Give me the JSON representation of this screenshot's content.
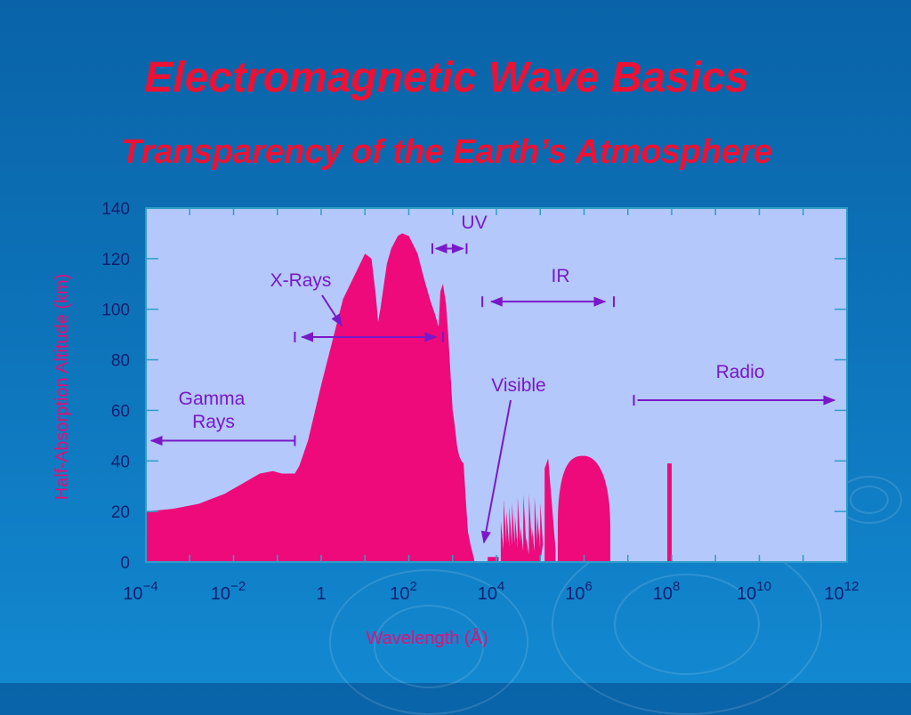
{
  "slide": {
    "title": "Electromagnetic Wave Basics",
    "subtitle": "Transparency of the Earth’s Atmosphere"
  },
  "colors": {
    "title": "#ee1133",
    "plot_background": "#b4c8fb",
    "fill": "#ee0a7a",
    "annotation": "#7a18c8",
    "axis_tick_text": "#0f1f70",
    "axis_label": "#e0107a",
    "frame": "#2e9ec8"
  },
  "chart_data": {
    "type": "area",
    "xlabel": "Wavelength (Å)",
    "ylabel": "Half-Absorption Altitude (km)",
    "xscale": "log",
    "xlim": [
      0.0001,
      1000000000000
    ],
    "ylim": [
      0,
      140
    ],
    "x_tick_labels": [
      {
        "base": "10",
        "exp": "−4"
      },
      {
        "base": "10",
        "exp": "−2"
      },
      {
        "base": "1",
        "exp": ""
      },
      {
        "base": "10",
        "exp": "2"
      },
      {
        "base": "10",
        "exp": "4"
      },
      {
        "base": "10",
        "exp": "6"
      },
      {
        "base": "10",
        "exp": "8"
      },
      {
        "base": "10",
        "exp": "10"
      },
      {
        "base": "10",
        "exp": "12"
      }
    ],
    "y_tick_labels": [
      "0",
      "20",
      "40",
      "60",
      "80",
      "100",
      "120",
      "140"
    ],
    "series": [
      {
        "log10_wavelength": [
          -4,
          -3.4,
          -2.8,
          -2.2,
          -1.8,
          -1.4,
          -1.1,
          -0.9,
          -0.6,
          -0.5,
          -0.3,
          0,
          0.5,
          1,
          1.15,
          1.25,
          1.3,
          1.35,
          1.45,
          1.5,
          1.6,
          1.75,
          1.85,
          2,
          2.2,
          2.35,
          2.5,
          2.6,
          2.68,
          2.72,
          2.78,
          2.85,
          2.9,
          3.0,
          3.05,
          3.1,
          3.15,
          3.2,
          3.25,
          3.3,
          3.35,
          3.42,
          3.48,
          3.5,
          3.55,
          3.6,
          3.68
        ],
        "altitude_km": [
          20,
          21,
          23,
          27,
          31,
          35,
          36,
          35,
          35,
          38,
          48,
          70,
          104,
          122,
          120,
          105,
          95,
          100,
          112,
          118,
          124,
          129,
          130,
          129,
          122,
          112,
          103,
          98,
          93,
          107,
          110,
          102,
          90,
          60,
          54,
          46,
          42,
          40,
          39,
          25,
          12,
          6,
          2,
          0,
          0,
          0,
          0
        ]
      }
    ],
    "spikes": [
      {
        "log10_wavelength": [
          3.8,
          4.05
        ],
        "altitude_km": 2
      },
      {
        "log10_wavelength": [
          4.1,
          5.0
        ],
        "altitude_km": 27
      },
      {
        "log10_wavelength": [
          5.1,
          5.35
        ],
        "altitude_km": 41
      },
      {
        "log10_wavelength": [
          5.4,
          6.6
        ],
        "altitude_km": 42
      },
      {
        "log10_wavelength": [
          7.9,
          8.0
        ],
        "altitude_km": 39
      }
    ],
    "annotations": [
      {
        "label": "Gamma",
        "label2": "Rays",
        "from": -4,
        "to": -0.6,
        "altitude_km": 48,
        "direction": "left"
      },
      {
        "label": "X-Rays",
        "from": -0.6,
        "to": 2.7,
        "altitude_km": 89,
        "direction": "both"
      },
      {
        "label": "UV",
        "from": 2.7,
        "to": 3.4,
        "altitude_km": 124,
        "direction": "both"
      },
      {
        "label": "IR",
        "from": 3.8,
        "to": 6.6,
        "altitude_km": 103,
        "direction": "both"
      },
      {
        "label": "Visible",
        "pointer_to": 3.7,
        "altitude_km": 12
      },
      {
        "label": "Radio",
        "from": 7.3,
        "to": 12,
        "altitude_km": 64,
        "direction": "right"
      }
    ]
  }
}
